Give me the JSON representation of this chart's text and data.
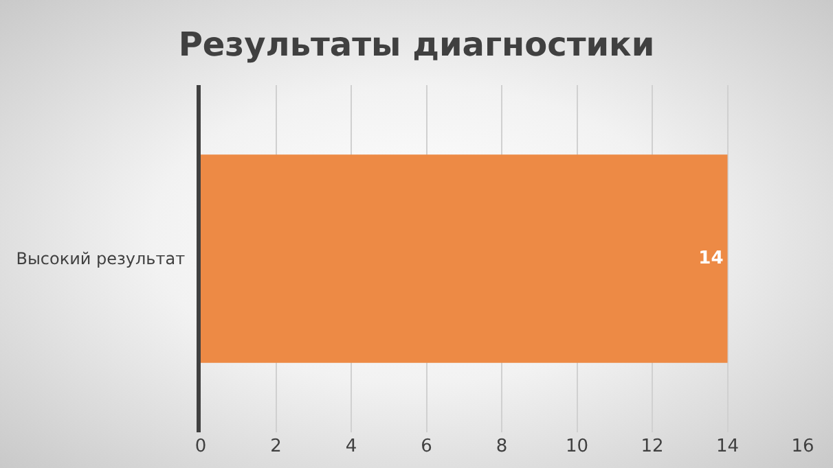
{
  "chart_data": {
    "type": "bar",
    "title": "Результаты диагностики",
    "orientation": "horizontal",
    "categories": [
      "Высокий результат"
    ],
    "series": [
      {
        "color": "#ed8a45",
        "values": [
          14
        ]
      }
    ],
    "xlim": [
      0,
      16
    ],
    "xticks": [
      0,
      2,
      4,
      6,
      8,
      10,
      12,
      14,
      16
    ],
    "grid": "x",
    "data_labels": true
  }
}
